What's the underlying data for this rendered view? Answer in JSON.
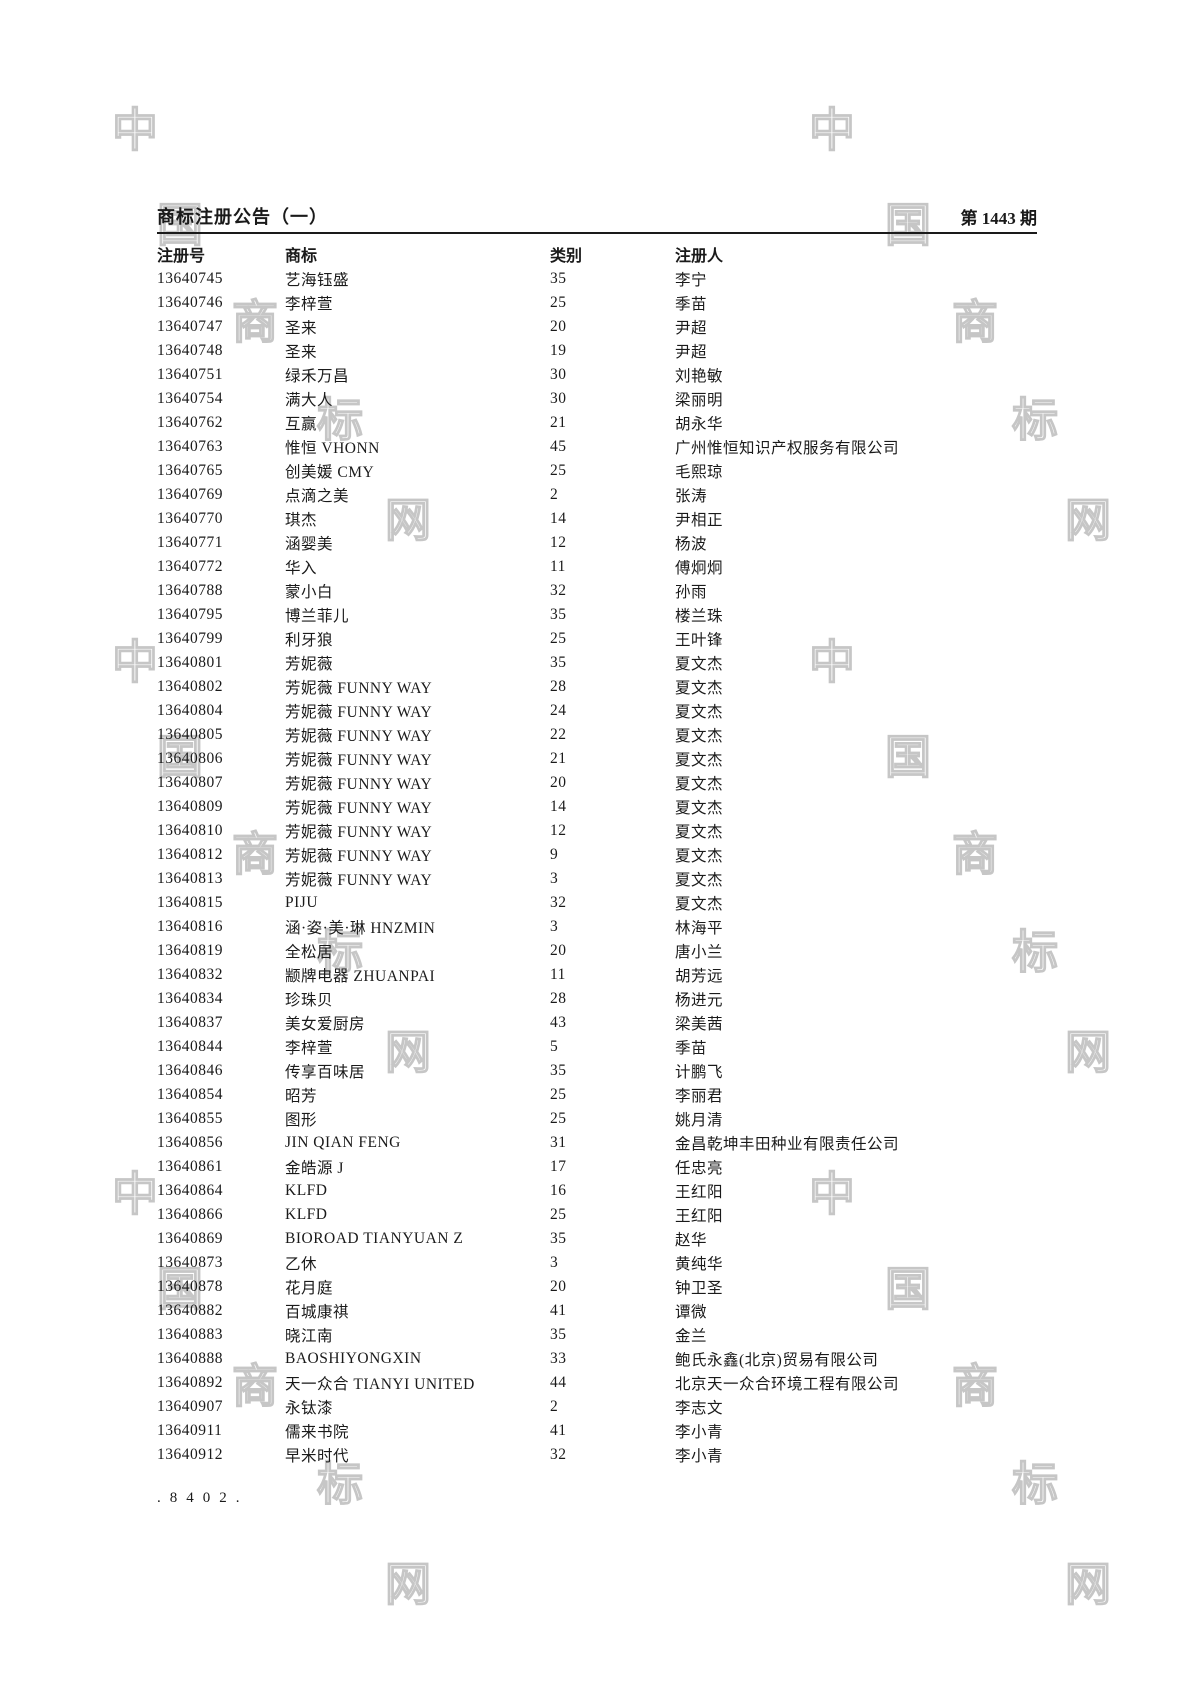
{
  "header": {
    "title": "商标注册公告（一）",
    "issue": "第 1443 期"
  },
  "table": {
    "columns": [
      "注册号",
      "商标",
      "类别",
      "注册人"
    ],
    "rows": [
      [
        "13640745",
        "艺海钰盛",
        "35",
        "李宁"
      ],
      [
        "13640746",
        "李梓萱",
        "25",
        "季苗"
      ],
      [
        "13640747",
        "圣来",
        "20",
        "尹超"
      ],
      [
        "13640748",
        "圣来",
        "19",
        "尹超"
      ],
      [
        "13640751",
        "绿禾万昌",
        "30",
        "刘艳敏"
      ],
      [
        "13640754",
        "满大人",
        "30",
        "梁丽明"
      ],
      [
        "13640762",
        "互赢",
        "21",
        "胡永华"
      ],
      [
        "13640763",
        "惟恒 VHONN",
        "45",
        "广州惟恒知识产权服务有限公司"
      ],
      [
        "13640765",
        "创美媛 CMY",
        "25",
        "毛熙琼"
      ],
      [
        "13640769",
        "点滴之美",
        "2",
        "张涛"
      ],
      [
        "13640770",
        "琪杰",
        "14",
        "尹相正"
      ],
      [
        "13640771",
        "涵婴美",
        "12",
        "杨波"
      ],
      [
        "13640772",
        "华入",
        "11",
        "傅炯炯"
      ],
      [
        "13640788",
        "蒙小白",
        "32",
        "孙雨"
      ],
      [
        "13640795",
        "博兰菲儿",
        "35",
        "楼兰珠"
      ],
      [
        "13640799",
        "利牙狼",
        "25",
        "王叶锋"
      ],
      [
        "13640801",
        "芳妮薇",
        "35",
        "夏文杰"
      ],
      [
        "13640802",
        "芳妮薇 FUNNY WAY",
        "28",
        "夏文杰"
      ],
      [
        "13640804",
        "芳妮薇 FUNNY WAY",
        "24",
        "夏文杰"
      ],
      [
        "13640805",
        "芳妮薇 FUNNY WAY",
        "22",
        "夏文杰"
      ],
      [
        "13640806",
        "芳妮薇 FUNNY WAY",
        "21",
        "夏文杰"
      ],
      [
        "13640807",
        "芳妮薇 FUNNY WAY",
        "20",
        "夏文杰"
      ],
      [
        "13640809",
        "芳妮薇 FUNNY WAY",
        "14",
        "夏文杰"
      ],
      [
        "13640810",
        "芳妮薇 FUNNY WAY",
        "12",
        "夏文杰"
      ],
      [
        "13640812",
        "芳妮薇 FUNNY WAY",
        "9",
        "夏文杰"
      ],
      [
        "13640813",
        "芳妮薇 FUNNY WAY",
        "3",
        "夏文杰"
      ],
      [
        "13640815",
        "PIJU",
        "32",
        "夏文杰"
      ],
      [
        "13640816",
        "涵·姿·美·琳 HNZMIN",
        "3",
        "林海平"
      ],
      [
        "13640819",
        "全松居",
        "20",
        "唐小兰"
      ],
      [
        "13640832",
        "颛牌电器 ZHUANPAI",
        "11",
        "胡芳远"
      ],
      [
        "13640834",
        "珍珠贝",
        "28",
        "杨进元"
      ],
      [
        "13640837",
        "美女爱厨房",
        "43",
        "梁美茜"
      ],
      [
        "13640844",
        "李梓萱",
        "5",
        "季苗"
      ],
      [
        "13640846",
        "传享百味居",
        "35",
        "计鹏飞"
      ],
      [
        "13640854",
        "昭芳",
        "25",
        "李丽君"
      ],
      [
        "13640855",
        "图形",
        "25",
        "姚月清"
      ],
      [
        "13640856",
        "JIN QIAN FENG",
        "31",
        "金昌乾坤丰田种业有限责任公司"
      ],
      [
        "13640861",
        "金皓源 J",
        "17",
        "任忠亮"
      ],
      [
        "13640864",
        "KLFD",
        "16",
        "王红阳"
      ],
      [
        "13640866",
        "KLFD",
        "25",
        "王红阳"
      ],
      [
        "13640869",
        "BIOROAD TIANYUAN Z",
        "35",
        "赵华"
      ],
      [
        "13640873",
        "乙休",
        "3",
        "黄纯华"
      ],
      [
        "13640878",
        "花月庭",
        "20",
        "钟卫圣"
      ],
      [
        "13640882",
        "百城康祺",
        "41",
        "谭微"
      ],
      [
        "13640883",
        "晓江南",
        "35",
        "金兰"
      ],
      [
        "13640888",
        "BAOSHIYONGXIN",
        "33",
        "鲍氏永鑫(北京)贸易有限公司"
      ],
      [
        "13640892",
        "天一众合 TIANYI UNITED",
        "44",
        "北京天一众合环境工程有限公司"
      ],
      [
        "13640907",
        "永钛漆",
        "2",
        "李志文"
      ],
      [
        "13640911",
        "儒来书院",
        "41",
        "李小青"
      ],
      [
        "13640912",
        "早米时代",
        "32",
        "李小青"
      ]
    ]
  },
  "footer": {
    "code": ".8402."
  },
  "watermark": {
    "text": "中国商标网",
    "chars": [
      "中",
      "国",
      "商",
      "标",
      "网"
    ],
    "color": "#c6c6c6"
  }
}
